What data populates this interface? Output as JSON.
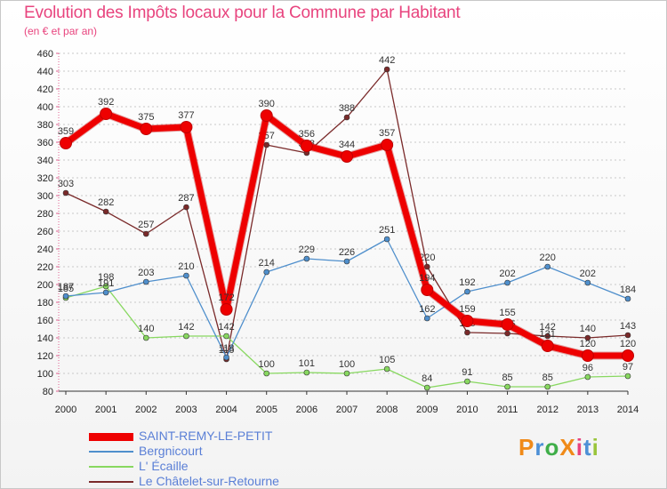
{
  "header": {
    "title": "Evolution des Impôts locaux pour la Commune par Habitant",
    "subtitle": "(en € et par an)"
  },
  "brand": {
    "logo": "ProXiti"
  },
  "chart_data": {
    "type": "line",
    "title": "Evolution des Impôts locaux pour la Commune par Habitant",
    "subtitle": "(en € et par an)",
    "xlabel": "",
    "ylabel": "",
    "categories": [
      "2000",
      "2001",
      "2002",
      "2003",
      "2004",
      "2005",
      "2006",
      "2007",
      "2008",
      "2009",
      "2010",
      "2011",
      "2012",
      "2013",
      "2014"
    ],
    "ylim": [
      80,
      460
    ],
    "yticks": [
      80,
      100,
      120,
      140,
      160,
      180,
      200,
      220,
      240,
      260,
      280,
      300,
      320,
      340,
      360,
      380,
      400,
      420,
      440,
      460
    ],
    "grid": "horizontal dashed",
    "legend": "bottom-left",
    "series": [
      {
        "name": "Le Châtelet-sur-Retourne",
        "color": "#7a2a2a",
        "values": [
          303,
          282,
          257,
          287,
          116,
          357,
          348,
          388,
          442,
          220,
          146,
          145,
          142,
          140,
          143
        ]
      },
      {
        "name": "L' Écaille",
        "color": "#88d860",
        "values": [
          185,
          198,
          140,
          142,
          142,
          100,
          101,
          100,
          105,
          84,
          91,
          85,
          85,
          96,
          97
        ]
      },
      {
        "name": "Bergnicourt",
        "color": "#4f8fcc",
        "values": [
          187,
          191,
          203,
          210,
          118,
          214,
          229,
          226,
          251,
          162,
          192,
          202,
          220,
          202,
          184
        ]
      },
      {
        "name": "SAINT-REMY-LE-PETIT",
        "color": "#ee0000",
        "values": [
          359,
          392,
          375,
          377,
          172,
          390,
          356,
          344,
          357,
          194,
          159,
          155,
          131,
          120,
          120
        ]
      }
    ],
    "legend_order": [
      "SAINT-REMY-LE-PETIT",
      "Bergnicourt",
      "L' Écaille",
      "Le Châtelet-sur-Retourne"
    ]
  }
}
